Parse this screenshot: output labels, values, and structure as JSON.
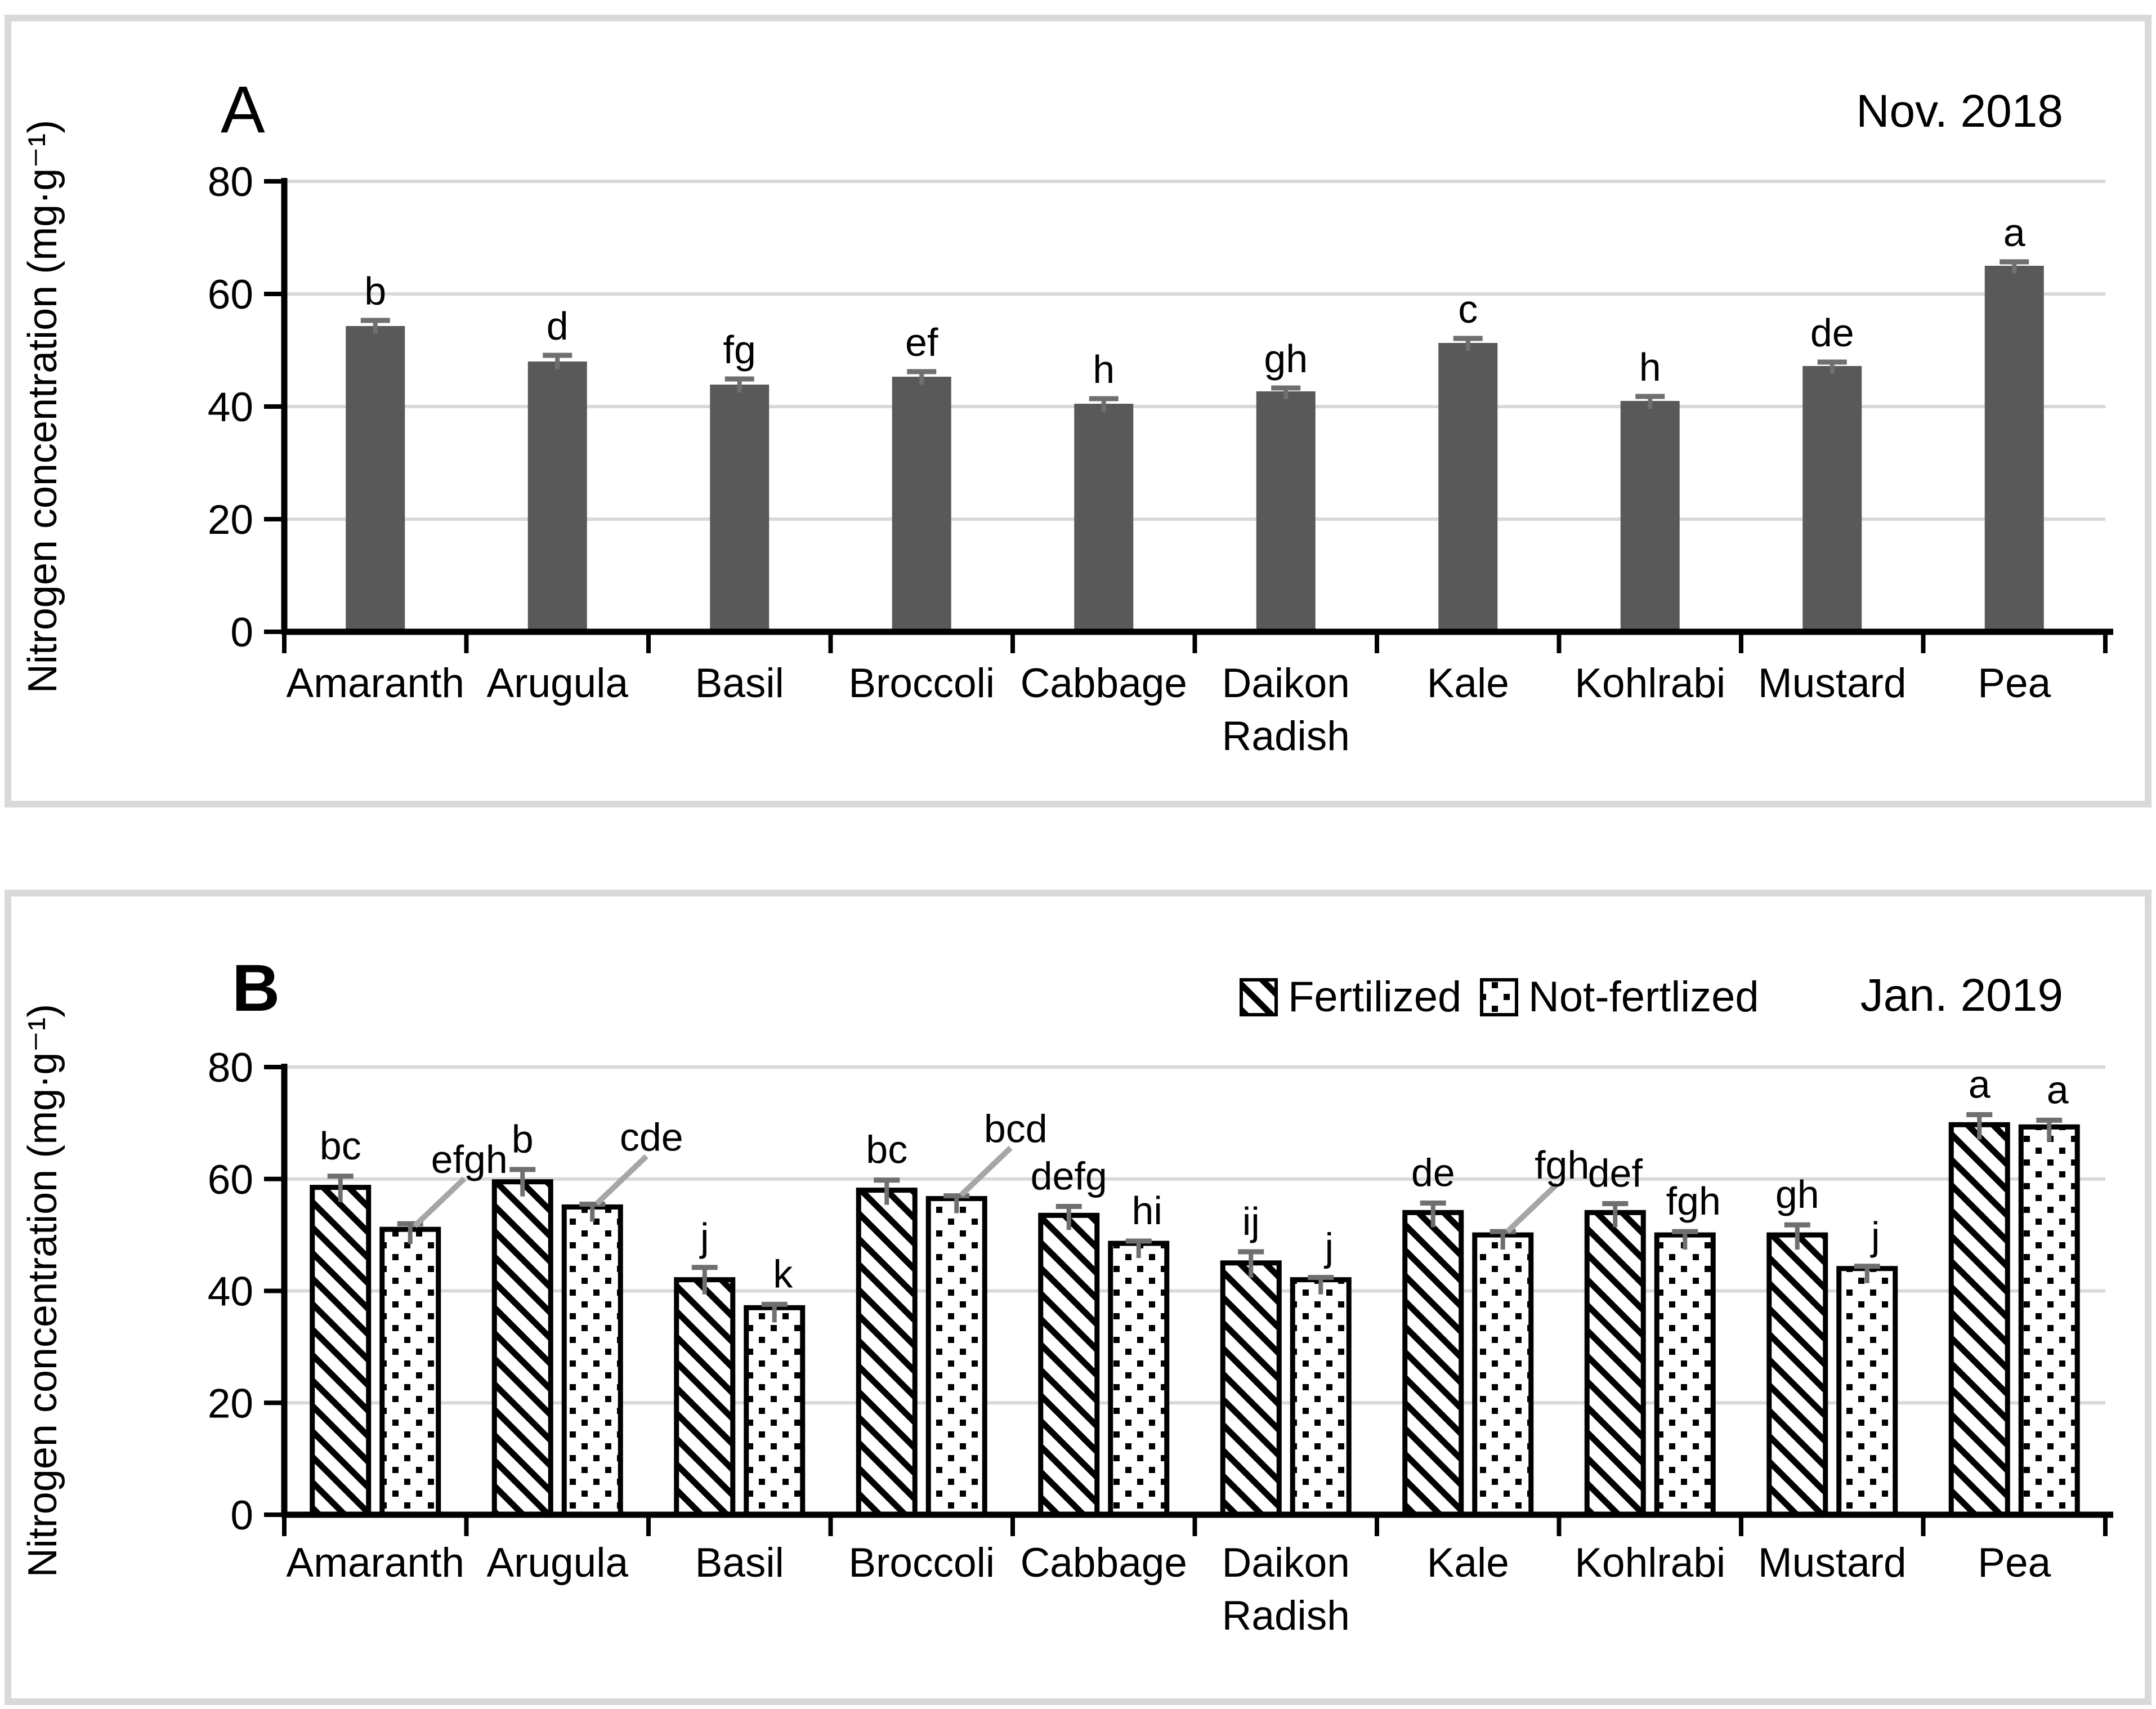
{
  "figure": {
    "background_color": "#ffffff",
    "panel_border_color": "#d9d9d9",
    "gridline_color": "#d9d9d9",
    "axis_color": "#000000",
    "bar_color_panel_a": "#595959",
    "bar_pattern_color": "#000000",
    "error_bar_color": "#6f6f6f",
    "leader_line_color": "#a6a6a6",
    "ylabel": "Nitrogen concentration (mg·g⁻¹)"
  },
  "chart_data": [
    {
      "type": "bar",
      "panel_letter": "A",
      "period_label": "Nov. 2018",
      "ylabel": "Nitrogen concentration (mg·g⁻¹)",
      "xlabel": "",
      "ylim": [
        0,
        80
      ],
      "yticks": [
        0,
        20,
        40,
        60,
        80
      ],
      "grid": true,
      "categories": [
        "Amaranth",
        "Arugula",
        "Basil",
        "Broccoli",
        "Cabbage",
        "Daikon Radish",
        "Kale",
        "Kohlrabi",
        "Mustard",
        "Pea"
      ],
      "series": [
        {
          "name": "Nov. 2018",
          "pattern": "solid",
          "values": [
            54.3,
            48.0,
            43.9,
            45.3,
            40.5,
            42.7,
            51.3,
            41.0,
            47.2,
            65.0
          ],
          "errors": [
            1.0,
            1.1,
            1.0,
            0.9,
            0.9,
            0.6,
            0.8,
            0.8,
            0.7,
            0.7
          ],
          "sig_letters": [
            "b",
            "d",
            "fg",
            "ef",
            "h",
            "gh",
            "c",
            "h",
            "de",
            "a"
          ]
        }
      ]
    },
    {
      "type": "bar",
      "panel_letter": "B",
      "period_label": "Jan. 2019",
      "ylabel": "Nitrogen concentration (mg·g⁻¹)",
      "xlabel": "",
      "ylim": [
        0,
        80
      ],
      "yticks": [
        0,
        20,
        40,
        60,
        80
      ],
      "grid": true,
      "legend": [
        "Fertilized",
        "Not-fertlized"
      ],
      "legend_position": "top-right-inside",
      "categories": [
        "Amaranth",
        "Arugula",
        "Basil",
        "Broccoli",
        "Cabbage",
        "Daikon Radish",
        "Kale",
        "Kohlrabi",
        "Mustard",
        "Pea"
      ],
      "series": [
        {
          "name": "Fertilized",
          "pattern": "diagonal-hatch",
          "values": [
            58.5,
            59.5,
            42.0,
            58.0,
            53.5,
            45.0,
            54.0,
            54.0,
            50.0,
            69.7
          ],
          "errors": [
            2.0,
            2.2,
            2.2,
            1.8,
            1.6,
            2.0,
            1.7,
            1.6,
            1.8,
            1.8
          ],
          "sig_letters": [
            "bc",
            "b",
            "j",
            "bc",
            "defg",
            "ij",
            "de",
            "def",
            "gh",
            "a"
          ]
        },
        {
          "name": "Not-fertlized",
          "pattern": "dots",
          "values": [
            51.0,
            55.0,
            37.0,
            56.5,
            48.5,
            42.0,
            50.0,
            50.0,
            44.0,
            69.3
          ],
          "errors": [
            1.0,
            0.5,
            0.6,
            0.5,
            0.4,
            0.4,
            0.6,
            0.6,
            0.4,
            1.2
          ],
          "sig_letters": [
            "efgh",
            "cde",
            "k",
            "bcd",
            "hi",
            "j",
            "fgh",
            "fgh",
            "j",
            "a"
          ],
          "label_leader_lines": [
            true,
            true,
            false,
            true,
            false,
            false,
            true,
            false,
            false,
            false
          ]
        }
      ]
    }
  ]
}
